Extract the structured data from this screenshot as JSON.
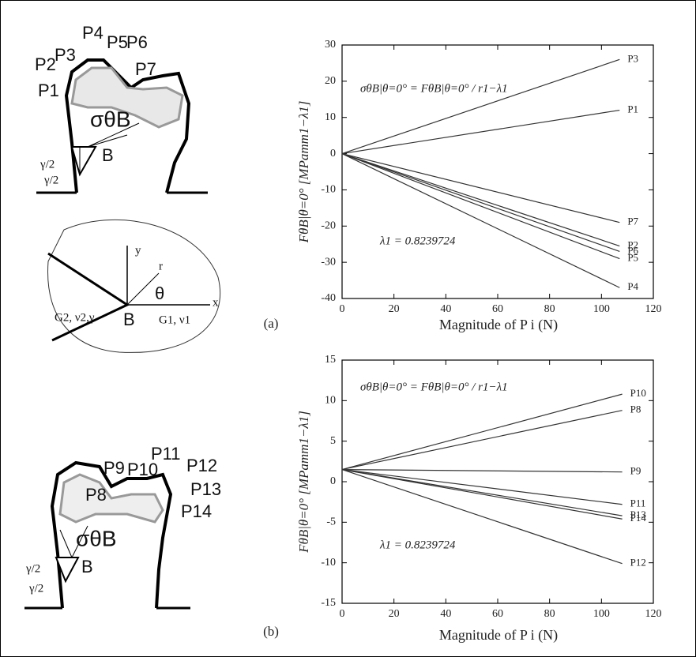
{
  "chart_data": [
    {
      "type": "line",
      "label": "(a)",
      "x_label": "Magnitude of P i (N)",
      "y_label": "FθB|θ=0° [MPamm1−λ1]",
      "annotations": [
        "σθB|θ=0° = FθB|θ=0° / r1−λ1",
        "λ1 = 0.8239724"
      ],
      "xlim": [
        0,
        120
      ],
      "xticks": [
        0,
        20,
        40,
        60,
        80,
        100,
        120
      ],
      "ylim": [
        -40,
        30
      ],
      "yticks": [
        -40,
        -30,
        -20,
        -10,
        0,
        10,
        20,
        30
      ],
      "series": [
        {
          "name": "P3",
          "color": "#333333",
          "x": [
            0,
            107
          ],
          "values": [
            0,
            26
          ]
        },
        {
          "name": "P1",
          "color": "#333333",
          "x": [
            0,
            107
          ],
          "values": [
            0,
            12
          ]
        },
        {
          "name": "P7",
          "color": "#333333",
          "x": [
            0,
            107
          ],
          "values": [
            0,
            -19
          ]
        },
        {
          "name": "P2",
          "color": "#333333",
          "x": [
            0,
            107
          ],
          "values": [
            0,
            -25.5
          ]
        },
        {
          "name": "P6",
          "color": "#333333",
          "x": [
            0,
            107
          ],
          "values": [
            0,
            -27
          ]
        },
        {
          "name": "P5",
          "color": "#333333",
          "x": [
            0,
            107
          ],
          "values": [
            0,
            -29
          ]
        },
        {
          "name": "P4",
          "color": "#333333",
          "x": [
            0,
            107
          ],
          "values": [
            0,
            -37
          ]
        }
      ]
    },
    {
      "type": "line",
      "label": "(b)",
      "x_label": "Magnitude of P i (N)",
      "y_label": "FθB|θ=0° [MPamm1−λ1]",
      "annotations": [
        "σθB|θ=0° = FθB|θ=0° / r1−λ1",
        "λ1 = 0.8239724"
      ],
      "xlim": [
        0,
        120
      ],
      "xticks": [
        0,
        20,
        40,
        60,
        80,
        100,
        120
      ],
      "ylim": [
        -15,
        15
      ],
      "yticks": [
        -15,
        -10,
        -5,
        0,
        5,
        10,
        15
      ],
      "series": [
        {
          "name": "P10",
          "color": "#333333",
          "x": [
            0,
            108
          ],
          "values": [
            1.5,
            10.8
          ]
        },
        {
          "name": "P8",
          "color": "#333333",
          "x": [
            0,
            108
          ],
          "values": [
            1.5,
            8.8
          ]
        },
        {
          "name": "P9",
          "color": "#333333",
          "x": [
            0,
            108
          ],
          "values": [
            1.5,
            1.2
          ]
        },
        {
          "name": "P11",
          "color": "#333333",
          "x": [
            0,
            108
          ],
          "values": [
            1.5,
            -2.8
          ]
        },
        {
          "name": "P13",
          "color": "#333333",
          "x": [
            0,
            108
          ],
          "values": [
            1.5,
            -4.2
          ]
        },
        {
          "name": "P14",
          "color": "#333333",
          "x": [
            0,
            108
          ],
          "values": [
            1.5,
            -4.6
          ]
        },
        {
          "name": "P12",
          "color": "#333333",
          "x": [
            0,
            108
          ],
          "values": [
            1.5,
            -10.1
          ]
        }
      ]
    }
  ],
  "diagrams": {
    "top": {
      "points": [
        "P1",
        "P2",
        "P3",
        "P4",
        "P5",
        "P6",
        "P7"
      ],
      "stress": "σθB",
      "corner": "B",
      "angles": [
        "γ/2",
        "γ/2"
      ]
    },
    "middle": {
      "axes": [
        "y",
        "x"
      ],
      "radius": "r",
      "angle": "θ",
      "corner": "B",
      "left_material": "G2, ν2,γ",
      "right_material": "G1, ν1"
    },
    "bottom": {
      "points": [
        "P8",
        "P9",
        "P10",
        "P11",
        "P12",
        "P13",
        "P14"
      ],
      "stress": "σθB",
      "corner": "B",
      "angles": [
        "γ/2",
        "γ/2"
      ]
    }
  }
}
